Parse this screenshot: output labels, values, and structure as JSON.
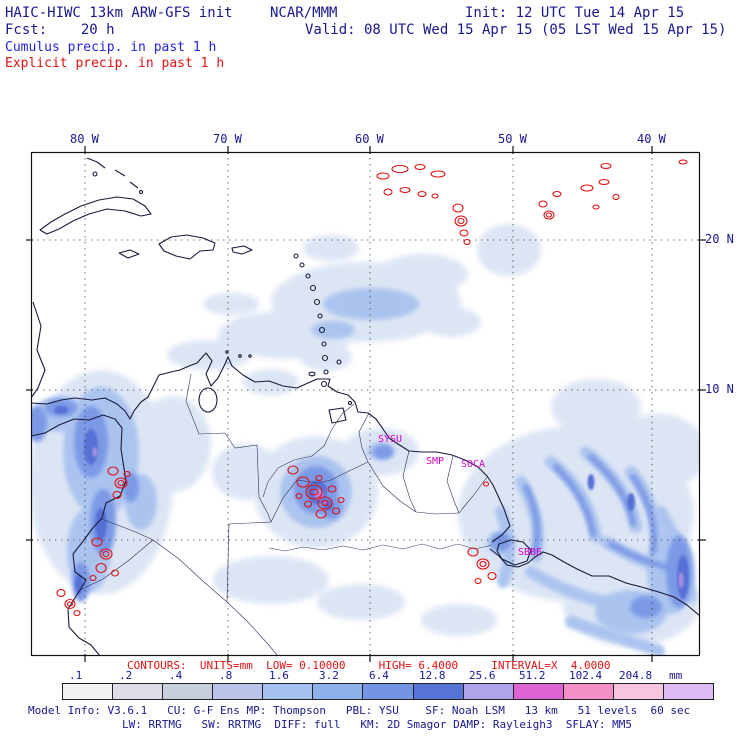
{
  "header": {
    "model_title": "HAIC-HIWC 13km ARW-GFS init",
    "center": "NCAR/MMM",
    "init_time": "Init: 12 UTC Tue 14 Apr 15",
    "fcst": "Fcst:    20 h",
    "valid_time": "Valid: 08 UTC Wed 15 Apr 15 (05 LST Wed 15 Apr 15)",
    "field_blue": "Cumulus precip. in past 1 h",
    "field_red": "Explicit precip. in past 1 h"
  },
  "map": {
    "lon_labels": [
      "80 W",
      "70 W",
      "60 W",
      "50 W",
      "40 W"
    ],
    "lat_labels": [
      "20 N",
      "10 N"
    ],
    "stations": {
      "s1": "SYSU",
      "s2": "SMP",
      "s3": "SOCA",
      "s4": "SBBE"
    }
  },
  "legend": {
    "contours_line": "CONTOURS:  UNITS=mm  LOW= 0.10000     HIGH= 6.4000     INTERVAL=X  4.0000"
  },
  "colorbar": {
    "labels": [
      ".1",
      ".2",
      ".4",
      ".8",
      "1.6",
      "3.2",
      "6.4",
      "12.8",
      "25.6",
      "51.2",
      "102.4",
      "204.8",
      "mm"
    ],
    "colors": [
      "#f2f2f2",
      "#dddde9",
      "#c9cedd",
      "#bac3e9",
      "#a5c1ef",
      "#8fb2ec",
      "#7495e4",
      "#5673d8",
      "#b0a3e9",
      "#df64d3",
      "#f191c7",
      "#f7c6de",
      "#debaf3"
    ]
  },
  "model_info": {
    "line1": "Model Info: V3.6.1   CU: G-F Ens MP: Thompson   PBL: YSU    SF: Noah LSM   13 km   51 levels  60 sec",
    "line2": "LW: RRTMG   SW: RRTMG  DIFF: full   KM: 2D Smagor DAMP: Rayleigh3  SFLAY: MM5"
  },
  "text_colors": {
    "navy": "#18188f",
    "blue": "#2424e0",
    "red": "#e01212",
    "magenta": "#d400d4"
  },
  "chart_data": {
    "type": "heatmap",
    "title": "HAIC-HIWC 13km ARW-GFS 1-h accumulated precipitation forecast",
    "source": "NCAR/MMM",
    "init": "12 UTC Tue 14 Apr 15",
    "forecast_hour": 20,
    "valid": "08 UTC Wed 15 Apr 15 (05 LST Wed 15 Apr 15)",
    "shaded_field": "Cumulus precip. in past 1 h",
    "contoured_field": "Explicit precip. in past 1 h",
    "contours": {
      "units": "mm",
      "low": 0.1,
      "high": 6.4,
      "interval": "X 4.0000"
    },
    "colorbar_levels_mm": [
      0.1,
      0.2,
      0.4,
      0.8,
      1.6,
      3.2,
      6.4,
      12.8,
      25.6,
      51.2,
      102.4,
      204.8
    ],
    "colorbar_colors": [
      "#f2f2f2",
      "#dddde9",
      "#c9cedd",
      "#bac3e9",
      "#a5c1ef",
      "#8fb2ec",
      "#7495e4",
      "#5673d8",
      "#b0a3e9",
      "#df64d3",
      "#f191c7",
      "#f7c6de",
      "#debaf3"
    ],
    "x_ticks": [
      "80 W",
      "70 W",
      "60 W",
      "50 W",
      "40 W"
    ],
    "y_ticks": [
      "20 N",
      "10 N"
    ],
    "grid": "dashed lat/lon lines every 10 degrees",
    "legend_position": "bottom",
    "stations": [
      "SYSU",
      "SMP",
      "SOCA",
      "SBBE"
    ],
    "precip_regions": [
      {
        "area": "western Colombia / Pacific coast",
        "intensity_mm": "3.2-25.6"
      },
      {
        "area": "central Venezuela",
        "intensity_mm": "3.2-51.2, explicit precip contours"
      },
      {
        "area": "French Guiana / Amapa / NE Brazil Atlantic",
        "intensity_mm": "0.8-12.8 banded"
      },
      {
        "area": "tropical Atlantic 15-22N 55-65W",
        "intensity_mm": "0.1-1.6, explicit precip contours"
      },
      {
        "area": "near Belem (SBBE)",
        "intensity_mm": "explicit precip contours"
      }
    ],
    "model": {
      "version": "V3.6.1",
      "cu": "G-F Ens",
      "mp": "Thompson",
      "pbl": "YSU",
      "sf": "Noah LSM",
      "grid_spacing": "13 km",
      "levels": "51 levels",
      "timestep": "60 sec",
      "lw": "RRTMG",
      "sw": "RRTMG",
      "diff": "full",
      "km": "2D Smagor",
      "damp": "Rayleigh3",
      "sflay": "MM5"
    }
  }
}
